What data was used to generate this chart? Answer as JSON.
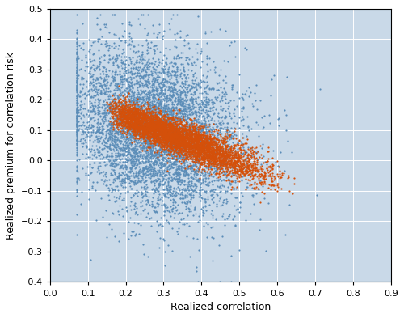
{
  "title": "",
  "xlabel": "Realized correlation",
  "ylabel": "Realized premium for correlation risk",
  "xlim": [
    0,
    0.9
  ],
  "ylim": [
    -0.4,
    0.5
  ],
  "xticks": [
    0,
    0.1,
    0.2,
    0.3,
    0.4,
    0.5,
    0.6,
    0.7,
    0.8,
    0.9
  ],
  "yticks": [
    -0.4,
    -0.3,
    -0.2,
    -0.1,
    0.0,
    0.1,
    0.2,
    0.3,
    0.4,
    0.5
  ],
  "background_color": "#c9d9e8",
  "blue_color": "#5b8db8",
  "orange_color": "#d4500a",
  "dot_size": 2.5,
  "n_blue": 6000,
  "n_orange": 5000,
  "seed": 42
}
